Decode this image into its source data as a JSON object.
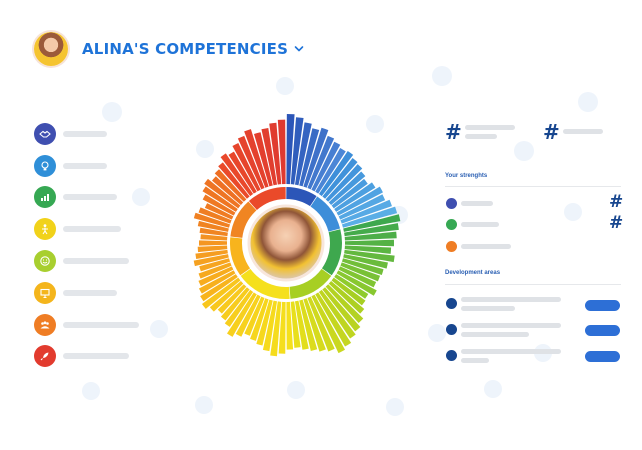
{
  "header": {
    "title": "ALINA'S COMPETENCIES",
    "avatar_icon": "profile-photo",
    "dropdown_icon": "chevron-down-icon"
  },
  "categories": [
    {
      "icon": "handshake-icon",
      "color": "#3f4fb0"
    },
    {
      "icon": "lightbulb-icon",
      "color": "#2f8fd8"
    },
    {
      "icon": "growth-chart-icon",
      "color": "#36a853"
    },
    {
      "icon": "figure-icon",
      "color": "#f1d21a"
    },
    {
      "icon": "smile-icon",
      "color": "#a8cf2f"
    },
    {
      "icon": "presentation-icon",
      "color": "#f4b51c"
    },
    {
      "icon": "team-icon",
      "color": "#ef7d24"
    },
    {
      "icon": "rocket-icon",
      "color": "#e23b2e"
    }
  ],
  "right_panel": {
    "strengths_label": "Your strenghts",
    "development_label": "Development areas",
    "hash_symbol": "#",
    "strength_dot_colors": [
      "#3f4fb0",
      "#36a853",
      "#ef7d24"
    ],
    "dev_dot_color": "#17468f",
    "button_color": "#2d6fd6"
  },
  "chart_data": {
    "type": "radial-bar",
    "sectors": [
      {
        "name": "",
        "color_start": "#2c56b8",
        "color_end": "#4b86d6",
        "values": [
          100,
          96,
          90,
          84,
          88,
          80,
          76,
          72
        ]
      },
      {
        "name": "",
        "color_start": "#3d8ed9",
        "color_end": "#5aaee6",
        "values": [
          74,
          70,
          68,
          64,
          60,
          66,
          72,
          70,
          76,
          80
        ]
      },
      {
        "name": "",
        "color_start": "#3ea84e",
        "color_end": "#8fcb2d",
        "values": [
          82,
          78,
          74,
          70,
          66,
          72,
          64,
          60,
          58,
          56,
          62,
          54
        ]
      },
      {
        "name": "",
        "color_start": "#a7cf23",
        "color_end": "#e8df1c",
        "values": [
          56,
          62,
          70,
          76,
          80,
          86,
          90,
          82,
          78,
          74,
          70,
          66
        ]
      },
      {
        "name": "",
        "color_start": "#f5e01d",
        "color_end": "#f8c61e",
        "values": [
          68,
          74,
          78,
          72,
          66,
          62,
          58,
          64,
          70,
          60,
          56,
          52,
          58,
          64
        ]
      },
      {
        "name": "",
        "color_start": "#f8b41d",
        "color_end": "#f39223",
        "values": [
          60,
          56,
          52,
          48,
          44,
          50,
          46,
          42,
          40,
          38
        ]
      },
      {
        "name": "",
        "color_start": "#f08522",
        "color_end": "#ee6f24",
        "values": [
          40,
          44,
          52,
          48,
          42,
          50,
          56,
          60,
          54,
          58
        ]
      },
      {
        "name": "",
        "color_start": "#ea4a2a",
        "color_end": "#df3a30",
        "values": [
          62,
          70,
          66,
          74,
          80,
          86,
          78,
          82,
          88,
          92
        ]
      }
    ]
  }
}
